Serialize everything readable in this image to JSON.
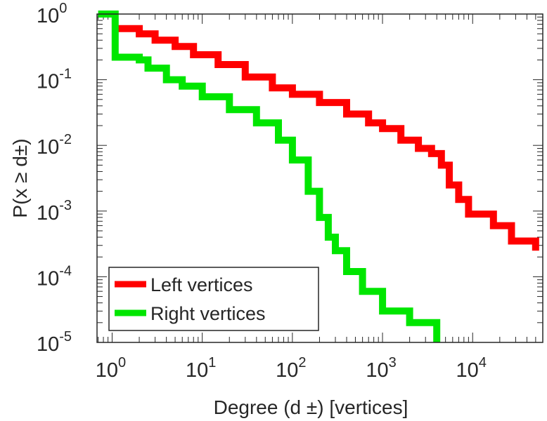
{
  "chart_data": {
    "type": "line",
    "style": "step",
    "title": "",
    "xlabel": "Degree (d ±) [vertices]",
    "ylabel": "P(x ≥ d±)",
    "xscale": "log",
    "yscale": "log",
    "xlim": [
      0.68,
      60000
    ],
    "ylim": [
      1e-05,
      1
    ],
    "x_ticks": [
      {
        "base": "10",
        "exp": "0",
        "value": 1
      },
      {
        "base": "10",
        "exp": "1",
        "value": 10
      },
      {
        "base": "10",
        "exp": "2",
        "value": 100
      },
      {
        "base": "10",
        "exp": "3",
        "value": 1000
      },
      {
        "base": "10",
        "exp": "4",
        "value": 10000
      }
    ],
    "y_ticks": [
      {
        "base": "10",
        "exp": "0",
        "value": 1
      },
      {
        "base": "10",
        "exp": "-1",
        "value": 0.1
      },
      {
        "base": "10",
        "exp": "-2",
        "value": 0.01
      },
      {
        "base": "10",
        "exp": "-3",
        "value": 0.001
      },
      {
        "base": "10",
        "exp": "-4",
        "value": 0.0001
      },
      {
        "base": "10",
        "exp": "-5",
        "value": 1e-05
      }
    ],
    "grid": false,
    "legend_position": "bottom-left",
    "series": [
      {
        "name": "Left vertices",
        "color": "#ff0000",
        "points": [
          [
            1,
            0.6
          ],
          [
            1.6,
            0.6
          ],
          [
            2,
            0.5
          ],
          [
            3,
            0.4
          ],
          [
            5,
            0.32
          ],
          [
            8,
            0.24
          ],
          [
            15,
            0.17
          ],
          [
            30,
            0.11
          ],
          [
            60,
            0.075
          ],
          [
            100,
            0.06
          ],
          [
            200,
            0.045
          ],
          [
            400,
            0.03
          ],
          [
            700,
            0.022
          ],
          [
            1000,
            0.018
          ],
          [
            1600,
            0.012
          ],
          [
            2500,
            0.009
          ],
          [
            3500,
            0.0075
          ],
          [
            4500,
            0.005
          ],
          [
            5500,
            0.0025
          ],
          [
            7000,
            0.0015
          ],
          [
            9000,
            0.0009
          ],
          [
            17000,
            0.0006
          ],
          [
            27000,
            0.00035
          ],
          [
            50000,
            0.00025
          ]
        ]
      },
      {
        "name": "Right vertices",
        "color": "#00e600",
        "points": [
          [
            0.7,
            1
          ],
          [
            1.08,
            1
          ],
          [
            1.08,
            0.22
          ],
          [
            2,
            0.2
          ],
          [
            2.5,
            0.15
          ],
          [
            4,
            0.1
          ],
          [
            6,
            0.08
          ],
          [
            10,
            0.055
          ],
          [
            20,
            0.035
          ],
          [
            40,
            0.022
          ],
          [
            70,
            0.012
          ],
          [
            100,
            0.006
          ],
          [
            150,
            0.002
          ],
          [
            200,
            0.0008
          ],
          [
            250,
            0.0004
          ],
          [
            300,
            0.00025
          ],
          [
            400,
            0.00012
          ],
          [
            600,
            6e-05
          ],
          [
            1000,
            3e-05
          ],
          [
            2000,
            2e-05
          ],
          [
            4000,
            1e-05
          ]
        ]
      }
    ]
  }
}
